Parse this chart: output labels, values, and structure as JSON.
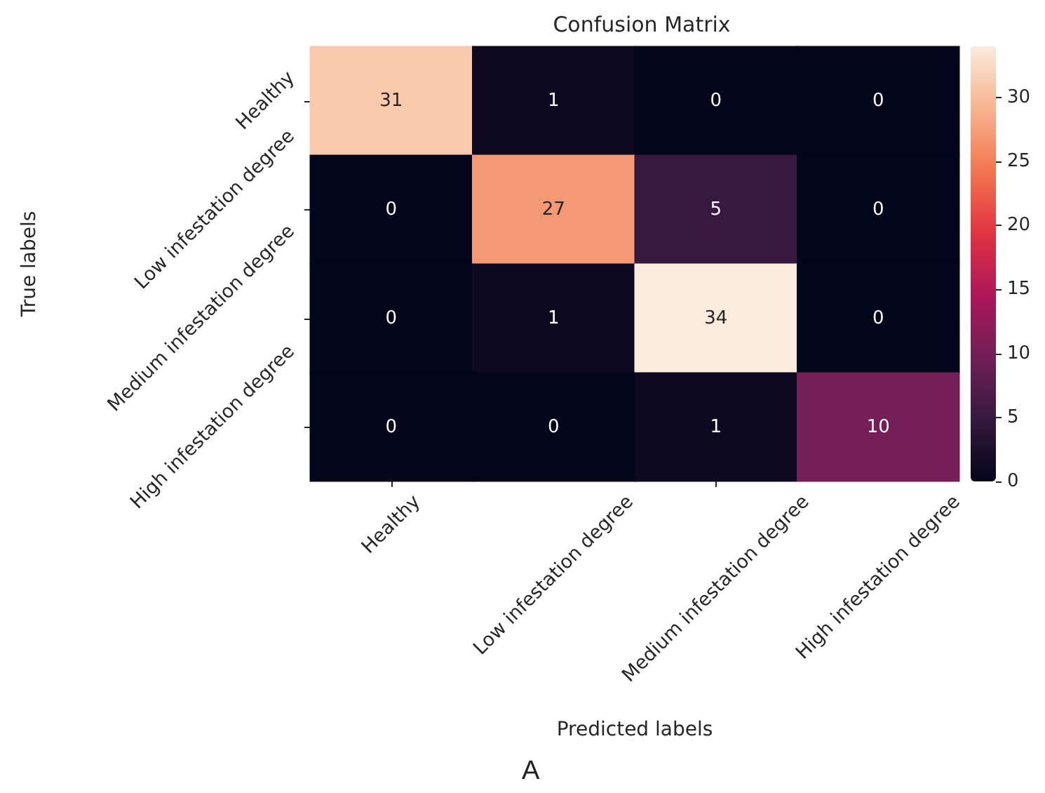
{
  "chart_data": {
    "type": "heatmap",
    "title": "Confusion Matrix",
    "xlabel": "Predicted labels",
    "ylabel": "True labels",
    "categories": [
      "Healthy",
      "Low infestation degree",
      "Medium infestation degree",
      "High infestation degree"
    ],
    "y_categories": [
      "Healthy",
      "Low infestation degree",
      "Medium infestation degree",
      "High infestation degree"
    ],
    "cells": [
      [
        31,
        1,
        0,
        0
      ],
      [
        0,
        27,
        5,
        0
      ],
      [
        0,
        1,
        34,
        0
      ],
      [
        0,
        0,
        1,
        10
      ]
    ],
    "clim": [
      0,
      34
    ],
    "cticks": [
      0,
      5,
      10,
      15,
      20,
      25,
      30
    ],
    "data_labels": true,
    "annotations": [
      "A"
    ]
  }
}
